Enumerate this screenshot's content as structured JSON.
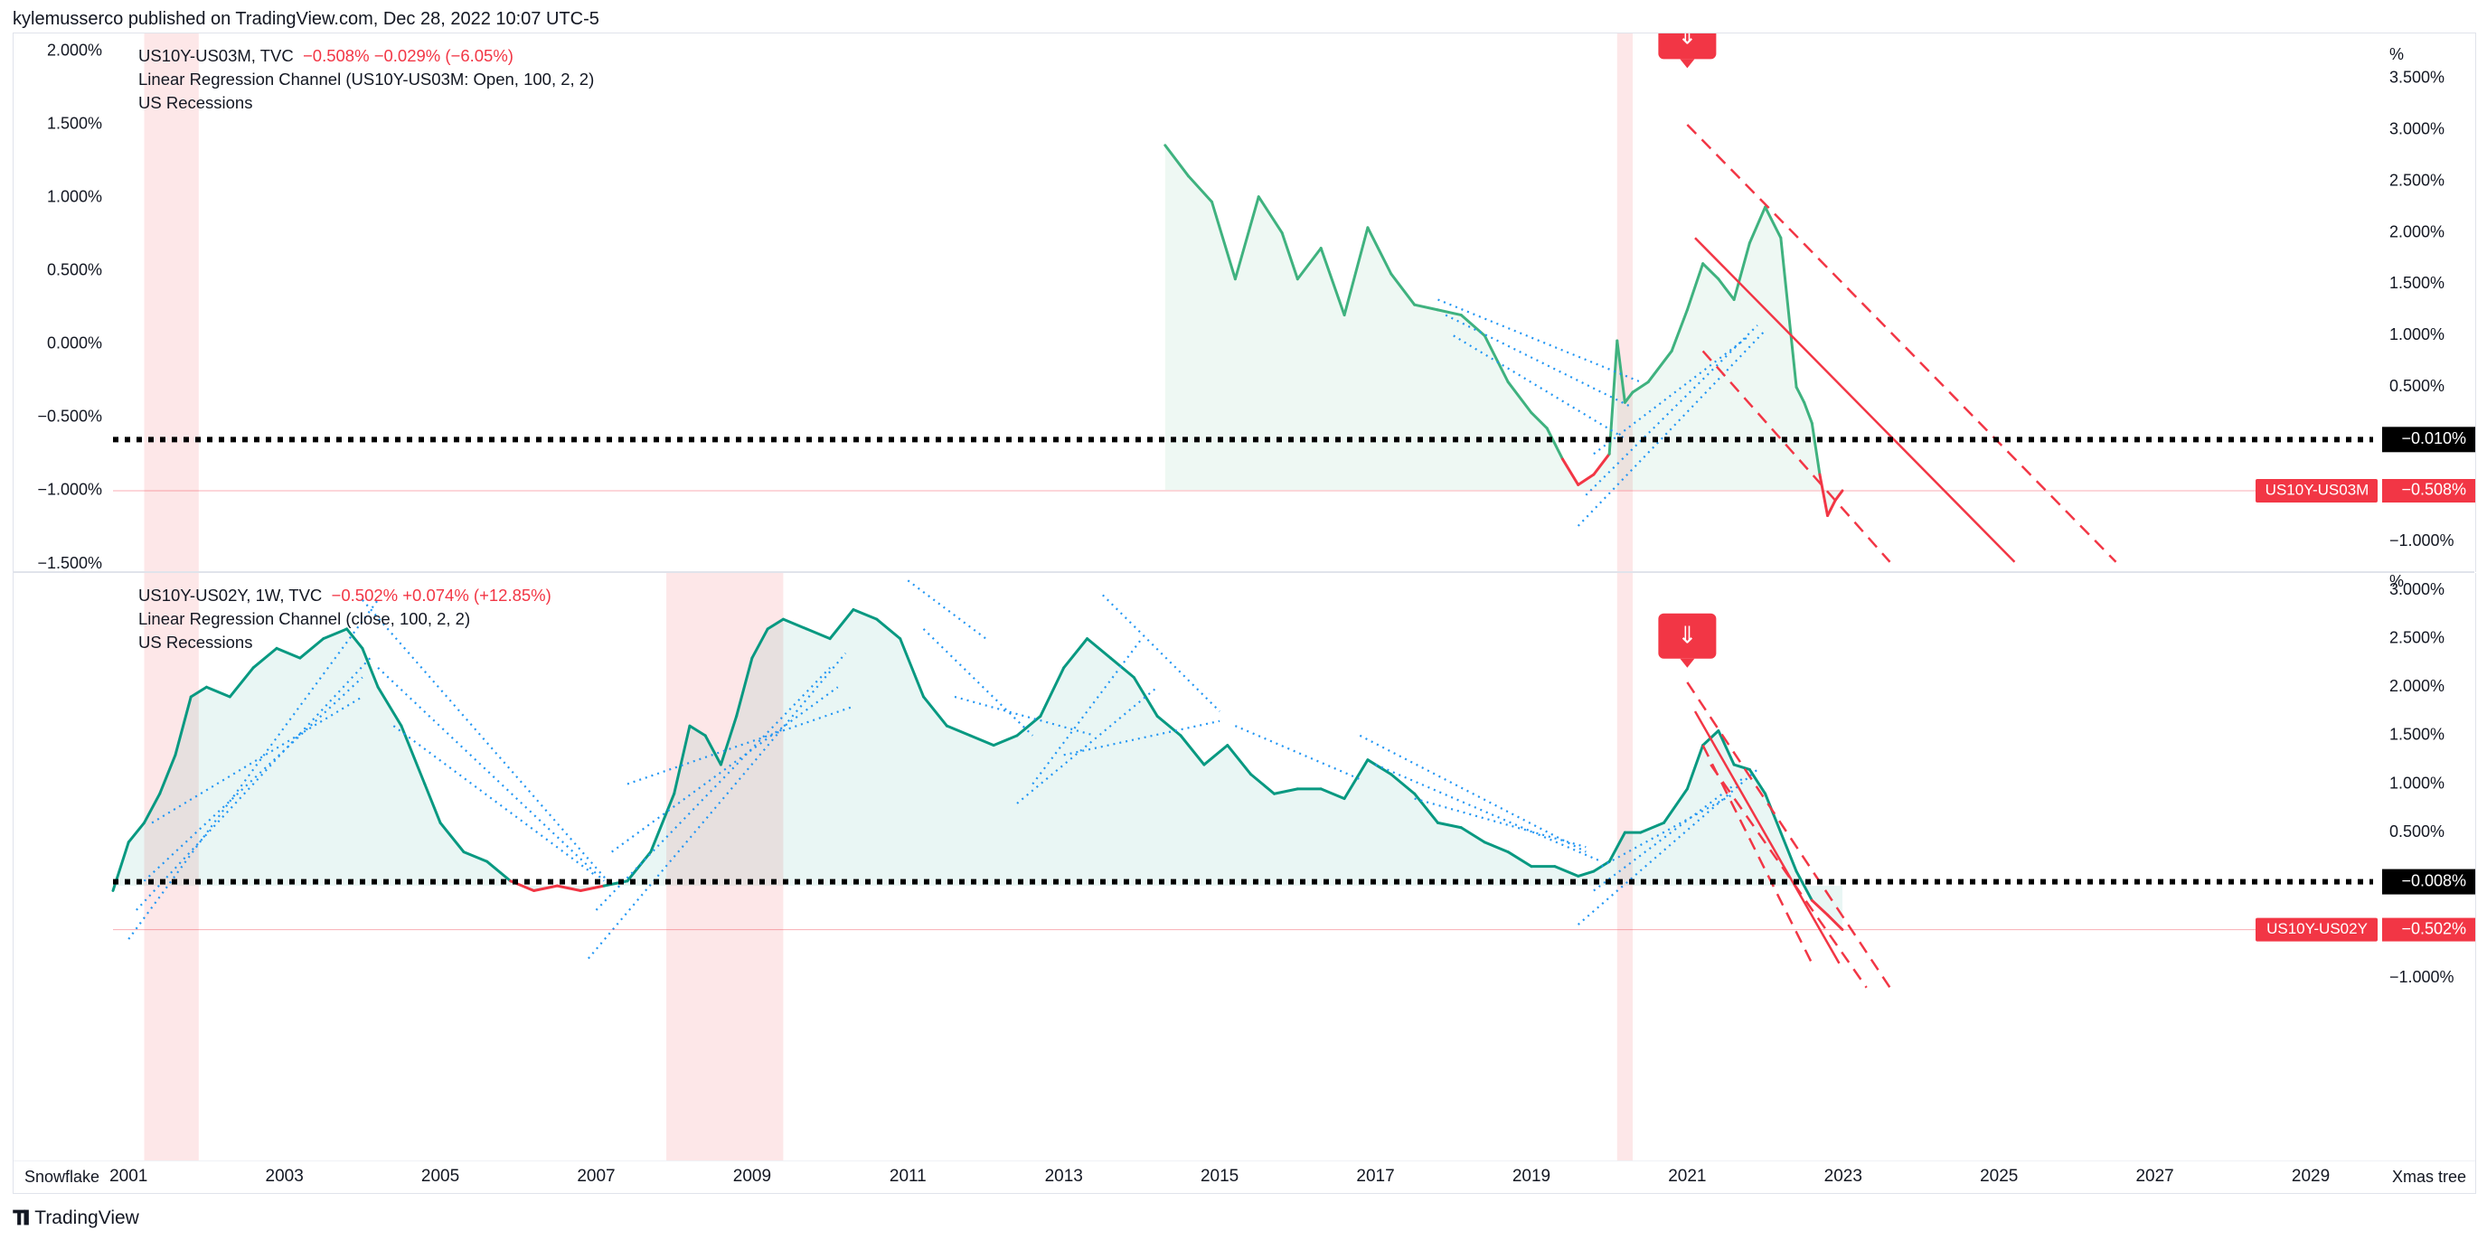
{
  "header": {
    "published": "kylemusserco published on TradingView.com, Dec 28, 2022 10:07 UTC-5"
  },
  "top_pane": {
    "legend": {
      "symbol": "US10Y-US03M, TVC",
      "quote": "−0.508%  −0.029% (−6.05%)",
      "indicator": "Linear Regression Channel (US10Y-US03M: Open, 100, 2, 2)",
      "recessions": "US Recessions"
    },
    "right_axis_unit": "%",
    "current_label": "US10Y-US03M",
    "current_value": "−0.508%",
    "level_value": "−0.010%"
  },
  "bottom_pane": {
    "legend": {
      "symbol": "US10Y-US02Y, 1W, TVC",
      "quote": "−0.502%  +0.074% (+12.85%)",
      "indicator": "Linear Regression Channel (close, 100, 2, 2)",
      "recessions": "US Recessions"
    },
    "right_axis_unit": "%",
    "current_label": "US10Y-US02Y",
    "current_value": "−0.502%",
    "level_value": "−0.008%"
  },
  "footer": {
    "left_label": "Snowflake",
    "right_label": "Xmas tree",
    "brand": "TradingView"
  },
  "colors": {
    "up_line_top": "#3fb27f",
    "up_line_bottom": "#089981",
    "down_line": "#f23645",
    "regression": "#2196f3",
    "recession": "#fde4e6",
    "dotted_level": "#000000",
    "channel": "#f23645"
  },
  "chart_data": [
    {
      "type": "line",
      "title": "US10Y-US03M, TVC",
      "x_range": [
        2000.8,
        2029.8
      ],
      "ylim_left": [
        -1.5,
        2.0
      ],
      "left_ticks": [
        "2.000%",
        "1.500%",
        "1.000%",
        "0.500%",
        "0.000%",
        "−0.500%",
        "−1.000%",
        "−1.500%"
      ],
      "left_tick_values": [
        2.0,
        1.5,
        1.0,
        0.5,
        0.0,
        -0.5,
        -1.0,
        -1.5
      ],
      "right_ticks": [
        "3.500%",
        "3.000%",
        "2.500%",
        "2.000%",
        "1.500%",
        "1.000%",
        "0.500%",
        "−1.000%"
      ],
      "right_tick_values": [
        3.5,
        3.0,
        2.5,
        2.0,
        1.5,
        1.0,
        0.5,
        -1.0
      ],
      "grid": false,
      "series": [
        {
          "x": [
            2014.3,
            2014.6,
            2014.9,
            2015.2,
            2015.5,
            2015.8,
            2016.0,
            2016.3,
            2016.6,
            2016.9,
            2017.2,
            2017.5,
            2017.8,
            2018.1,
            2018.4,
            2018.7,
            2019.0,
            2019.2,
            2019.4,
            2019.6,
            2019.8,
            2020.0,
            2020.1,
            2020.2,
            2020.3,
            2020.5,
            2020.8,
            2021.0,
            2021.2,
            2021.4,
            2021.6,
            2021.8,
            2022.0,
            2022.2,
            2022.4,
            2022.5,
            2022.6,
            2022.7,
            2022.8,
            2022.9,
            2022.99
          ],
          "y": [
            2.85,
            2.55,
            2.3,
            1.55,
            2.35,
            2.0,
            1.55,
            1.85,
            1.2,
            2.05,
            1.6,
            1.3,
            1.25,
            1.2,
            1.0,
            0.55,
            0.25,
            0.1,
            -0.2,
            -0.45,
            -0.35,
            -0.15,
            0.95,
            0.35,
            0.45,
            0.55,
            0.85,
            1.25,
            1.7,
            1.55,
            1.35,
            1.9,
            2.25,
            1.95,
            0.5,
            0.35,
            0.15,
            -0.35,
            -0.75,
            -0.6,
            -0.508
          ]
        }
      ],
      "annotations": [
        "US Recessions 2001.2-2001.9",
        "US Recessions 2020.1-2020.3",
        "level -0.010%",
        "down arrow marker 2021.0"
      ]
    },
    {
      "type": "line",
      "title": "US10Y-US02Y, 1W, TVC",
      "x_range": [
        2000.8,
        2029.8
      ],
      "ylim": [
        -1.0,
        3.0
      ],
      "right_ticks": [
        "3.000%",
        "2.500%",
        "2.000%",
        "1.500%",
        "1.000%",
        "0.500%",
        "−1.000%"
      ],
      "right_tick_values": [
        3.0,
        2.5,
        2.0,
        1.5,
        1.0,
        0.5,
        -1.0
      ],
      "x_ticks": [
        "2001",
        "2003",
        "2005",
        "2007",
        "2009",
        "2011",
        "2013",
        "2015",
        "2017",
        "2019",
        "2021",
        "2023",
        "2025",
        "2027",
        "2029"
      ],
      "x_tick_values": [
        2001,
        2003,
        2005,
        2007,
        2009,
        2011,
        2013,
        2015,
        2017,
        2019,
        2021,
        2023,
        2025,
        2027,
        2029
      ],
      "grid": false,
      "series": [
        {
          "x": [
            2000.8,
            2001.0,
            2001.2,
            2001.4,
            2001.6,
            2001.8,
            2002.0,
            2002.3,
            2002.6,
            2002.9,
            2003.2,
            2003.5,
            2003.8,
            2004.0,
            2004.2,
            2004.5,
            2004.8,
            2005.0,
            2005.3,
            2005.6,
            2005.9,
            2006.2,
            2006.5,
            2006.8,
            2007.1,
            2007.4,
            2007.7,
            2008.0,
            2008.2,
            2008.4,
            2008.6,
            2008.8,
            2009.0,
            2009.2,
            2009.4,
            2009.7,
            2010.0,
            2010.3,
            2010.6,
            2010.9,
            2011.2,
            2011.5,
            2011.8,
            2012.1,
            2012.4,
            2012.7,
            2013.0,
            2013.3,
            2013.6,
            2013.9,
            2014.2,
            2014.5,
            2014.8,
            2015.1,
            2015.4,
            2015.7,
            2016.0,
            2016.3,
            2016.6,
            2016.9,
            2017.2,
            2017.5,
            2017.8,
            2018.1,
            2018.4,
            2018.7,
            2019.0,
            2019.3,
            2019.6,
            2019.8,
            2020.0,
            2020.2,
            2020.4,
            2020.7,
            2021.0,
            2021.2,
            2021.4,
            2021.6,
            2021.8,
            2022.0,
            2022.2,
            2022.4,
            2022.6,
            2022.8,
            2022.99
          ],
          "y": [
            -0.1,
            0.4,
            0.6,
            0.9,
            1.3,
            1.9,
            2.0,
            1.9,
            2.2,
            2.4,
            2.3,
            2.5,
            2.6,
            2.4,
            2.0,
            1.6,
            1.0,
            0.6,
            0.3,
            0.2,
            0.0,
            -0.1,
            -0.05,
            -0.1,
            -0.05,
            0.0,
            0.3,
            0.9,
            1.6,
            1.5,
            1.2,
            1.7,
            2.3,
            2.6,
            2.7,
            2.6,
            2.5,
            2.8,
            2.7,
            2.5,
            1.9,
            1.6,
            1.5,
            1.4,
            1.5,
            1.7,
            2.2,
            2.5,
            2.3,
            2.1,
            1.7,
            1.5,
            1.2,
            1.4,
            1.1,
            0.9,
            0.95,
            0.95,
            0.85,
            1.25,
            1.1,
            0.9,
            0.6,
            0.55,
            0.4,
            0.3,
            0.15,
            0.15,
            0.05,
            0.1,
            0.2,
            0.5,
            0.5,
            0.6,
            0.95,
            1.4,
            1.55,
            1.2,
            1.15,
            0.9,
            0.5,
            0.1,
            -0.2,
            -0.35,
            -0.502
          ]
        }
      ],
      "annotations": [
        "US Recessions 2001.2-2001.9",
        "US Recessions 2007.9-2009.5",
        "US Recessions 2020.1-2020.3",
        "level -0.008%",
        "down arrow marker 2021.0"
      ]
    }
  ]
}
